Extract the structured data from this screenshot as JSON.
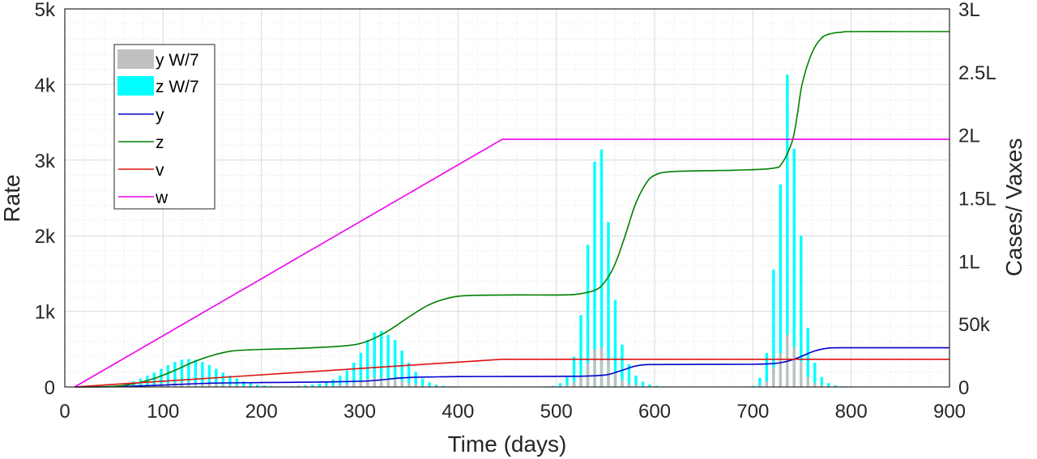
{
  "chart_data": {
    "type": "line",
    "xlabel": "Time (days)",
    "ylabel_left": "Rate",
    "ylabel_right": "Cases/ Vaxes",
    "xlim": [
      0,
      900
    ],
    "ylim_left": [
      0,
      5000
    ],
    "ylim_right": [
      0,
      300000
    ],
    "grid": true,
    "legend_position": "top-left",
    "x_ticks": [
      "0",
      "100",
      "200",
      "300",
      "400",
      "500",
      "600",
      "700",
      "800",
      "900"
    ],
    "y_ticks_left": [
      "0",
      "1k",
      "2k",
      "3k",
      "4k",
      "5k"
    ],
    "y_ticks_right": [
      "0",
      "50k",
      "1L",
      "1.5L",
      "2L",
      "2.5L",
      "3L"
    ],
    "colors": {
      "y_bar": "#c0c0c0",
      "z_bar": "#00ffff",
      "y": "#0000cc",
      "z": "#008000",
      "v": "#dd1111",
      "w": "#ee00ee"
    },
    "legend": [
      {
        "label": "y W/7",
        "kind": "bar",
        "color": "#c0c0c0"
      },
      {
        "label": "z W/7",
        "kind": "bar",
        "color": "#00ffff"
      },
      {
        "label": "y",
        "kind": "line",
        "color": "#0000cc"
      },
      {
        "label": "z",
        "kind": "line",
        "color": "#008000"
      },
      {
        "label": "v",
        "kind": "line",
        "color": "#dd1111"
      },
      {
        "label": "w",
        "kind": "line",
        "color": "#ee00ee"
      }
    ],
    "bars_z": {
      "axis": "left",
      "x": [
        63,
        70,
        77,
        84,
        91,
        98,
        105,
        112,
        119,
        126,
        133,
        140,
        147,
        154,
        161,
        168,
        175,
        182,
        189,
        196,
        203,
        210,
        217,
        224,
        231,
        238,
        245,
        252,
        259,
        266,
        273,
        280,
        287,
        294,
        301,
        308,
        315,
        322,
        329,
        336,
        343,
        350,
        357,
        364,
        371,
        378,
        385,
        392,
        399,
        406,
        413,
        420,
        427,
        434,
        441,
        448,
        455,
        462,
        469,
        476,
        483,
        490,
        497,
        504,
        511,
        518,
        525,
        532,
        539,
        546,
        553,
        560,
        567,
        574,
        581,
        588,
        595,
        602,
        609,
        616,
        623,
        630,
        637,
        644,
        651,
        658,
        665,
        672,
        679,
        686,
        693,
        700,
        707,
        714,
        721,
        728,
        735,
        742,
        749,
        756,
        763,
        770,
        777,
        784,
        791
      ],
      "values": [
        50,
        75,
        110,
        150,
        190,
        240,
        290,
        330,
        360,
        370,
        360,
        330,
        290,
        240,
        190,
        150,
        110,
        75,
        50,
        30,
        20,
        12,
        8,
        8,
        10,
        15,
        20,
        30,
        45,
        70,
        100,
        150,
        220,
        320,
        450,
        620,
        720,
        740,
        690,
        620,
        480,
        320,
        200,
        110,
        60,
        30,
        15,
        8,
        5,
        5,
        5,
        5,
        5,
        5,
        5,
        5,
        5,
        5,
        5,
        5,
        5,
        8,
        15,
        50,
        150,
        400,
        950,
        1880,
        2980,
        3140,
        2180,
        1150,
        560,
        300,
        150,
        70,
        30,
        15,
        8,
        5,
        5,
        5,
        5,
        5,
        5,
        5,
        5,
        5,
        5,
        5,
        5,
        15,
        120,
        450,
        1550,
        2680,
        4130,
        3150,
        2000,
        780,
        320,
        130,
        50,
        20,
        8
      ]
    },
    "bars_y": {
      "axis": "left",
      "x": [
        63,
        70,
        77,
        84,
        91,
        98,
        105,
        112,
        119,
        126,
        133,
        140,
        147,
        154,
        161,
        168,
        175,
        182,
        189,
        196,
        203,
        210,
        217,
        224,
        231,
        238,
        245,
        252,
        259,
        266,
        273,
        280,
        287,
        294,
        301,
        308,
        315,
        322,
        329,
        336,
        343,
        350,
        357,
        364,
        371,
        378,
        385,
        392,
        399,
        406,
        413,
        420,
        427,
        434,
        441,
        448,
        455,
        462,
        469,
        476,
        483,
        490,
        497,
        504,
        511,
        518,
        525,
        532,
        539,
        546,
        553,
        560,
        567,
        574,
        581,
        588,
        595,
        602,
        609,
        616,
        623,
        630,
        637,
        644,
        651,
        658,
        665,
        672,
        679,
        686,
        693,
        700,
        707,
        714,
        721,
        728,
        735,
        742,
        749,
        756,
        763,
        770,
        777,
        784,
        791
      ],
      "values": [
        8,
        12,
        18,
        25,
        32,
        40,
        48,
        55,
        60,
        62,
        60,
        55,
        48,
        40,
        32,
        25,
        18,
        12,
        8,
        5,
        3,
        2,
        1,
        1,
        2,
        2,
        3,
        5,
        8,
        12,
        17,
        25,
        37,
        53,
        75,
        103,
        120,
        123,
        115,
        103,
        80,
        53,
        33,
        18,
        10,
        5,
        3,
        1,
        1,
        1,
        1,
        1,
        1,
        1,
        1,
        1,
        1,
        1,
        1,
        1,
        1,
        1,
        3,
        8,
        25,
        67,
        158,
        313,
        497,
        523,
        363,
        192,
        93,
        50,
        25,
        12,
        5,
        3,
        1,
        1,
        1,
        1,
        1,
        1,
        1,
        1,
        1,
        1,
        1,
        1,
        1,
        3,
        20,
        75,
        258,
        447,
        688,
        525,
        333,
        130,
        53,
        22,
        8,
        3,
        1
      ]
    },
    "series": [
      {
        "name": "y",
        "axis": "right",
        "color": "#0000cc",
        "x": [
          10,
          50,
          100,
          150,
          200,
          250,
          300,
          320,
          340,
          360,
          380,
          400,
          450,
          500,
          530,
          550,
          560,
          570,
          580,
          590,
          600,
          650,
          700,
          720,
          730,
          740,
          750,
          760,
          770,
          780,
          800,
          850,
          900
        ],
        "values": [
          0,
          200,
          1500,
          3000,
          3500,
          3800,
          4500,
          5500,
          7000,
          7800,
          8000,
          8200,
          8300,
          8400,
          8600,
          9500,
          11500,
          14000,
          16500,
          17600,
          17800,
          17900,
          18000,
          18500,
          19500,
          21500,
          24500,
          27800,
          30000,
          31000,
          31100,
          31100,
          31100
        ]
      },
      {
        "name": "z",
        "axis": "right",
        "color": "#008000",
        "x": [
          10,
          50,
          70,
          90,
          110,
          130,
          150,
          170,
          190,
          210,
          250,
          290,
          310,
          330,
          350,
          370,
          390,
          410,
          450,
          500,
          520,
          540,
          550,
          560,
          570,
          580,
          590,
          600,
          620,
          680,
          720,
          730,
          740,
          745,
          750,
          760,
          770,
          780,
          790,
          800,
          850,
          900
        ],
        "values": [
          0,
          500,
          2500,
          6500,
          12500,
          19500,
          25000,
          28500,
          29500,
          30000,
          31000,
          33000,
          37000,
          45000,
          55500,
          65000,
          70500,
          72500,
          73000,
          73000,
          73500,
          77000,
          84000,
          98000,
          120000,
          144000,
          160000,
          168000,
          171000,
          172000,
          173500,
          178000,
          195000,
          215000,
          240000,
          265000,
          277000,
          280500,
          281500,
          282000,
          282000,
          282000
        ]
      },
      {
        "name": "v",
        "axis": "right",
        "color": "#dd1111",
        "x": [
          10,
          445,
          900
        ],
        "values": [
          0,
          22000,
          22000
        ]
      },
      {
        "name": "w",
        "axis": "right",
        "color": "#ee00ee",
        "x": [
          10,
          445,
          900
        ],
        "values": [
          0,
          196500,
          196500
        ]
      }
    ]
  }
}
